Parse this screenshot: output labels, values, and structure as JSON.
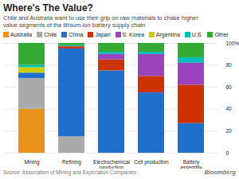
{
  "chart_data": {
    "type": "bar",
    "stacked": true,
    "title": "Where's The Value?",
    "subtitle": "Chile and Australia want to use their grip on raw materials to chase higher\nvalue segments of the lithium-ion battery supply chain",
    "categories": [
      "Mining",
      "Refining",
      "Electrochemical\nproduction",
      "Cell production",
      "Battery\nassembly"
    ],
    "series": [
      {
        "name": "Australia",
        "color": "#E8921A",
        "values": [
          40,
          0,
          0,
          0,
          0
        ]
      },
      {
        "name": "Chile",
        "color": "#AAAAAA",
        "values": [
          28,
          15,
          0,
          0,
          0
        ]
      },
      {
        "name": "China",
        "color": "#1F6FCC",
        "values": [
          5,
          80,
          75,
          55,
          27
        ]
      },
      {
        "name": "Japan",
        "color": "#CC3300",
        "values": [
          0,
          2,
          10,
          15,
          35
        ]
      },
      {
        "name": "S. Korea",
        "color": "#9944BB",
        "values": [
          0,
          0,
          5,
          20,
          20
        ]
      },
      {
        "name": "Argentina",
        "color": "#CCCC00",
        "values": [
          5,
          0,
          0,
          0,
          0
        ]
      },
      {
        "name": "U.S.",
        "color": "#00BBBB",
        "values": [
          2,
          1,
          2,
          2,
          5
        ]
      },
      {
        "name": "Other",
        "color": "#33AA33",
        "values": [
          20,
          2,
          8,
          8,
          13
        ]
      }
    ],
    "ylim": [
      0,
      100
    ],
    "yticks": [
      0,
      20,
      40,
      60,
      80,
      {
        "value": 100,
        "label": "100%"
      }
    ],
    "grid": true,
    "legend": "upper left",
    "annotations": [
      "Source: Association of Mining and Exploration Companies",
      "Bloomberg"
    ]
  }
}
